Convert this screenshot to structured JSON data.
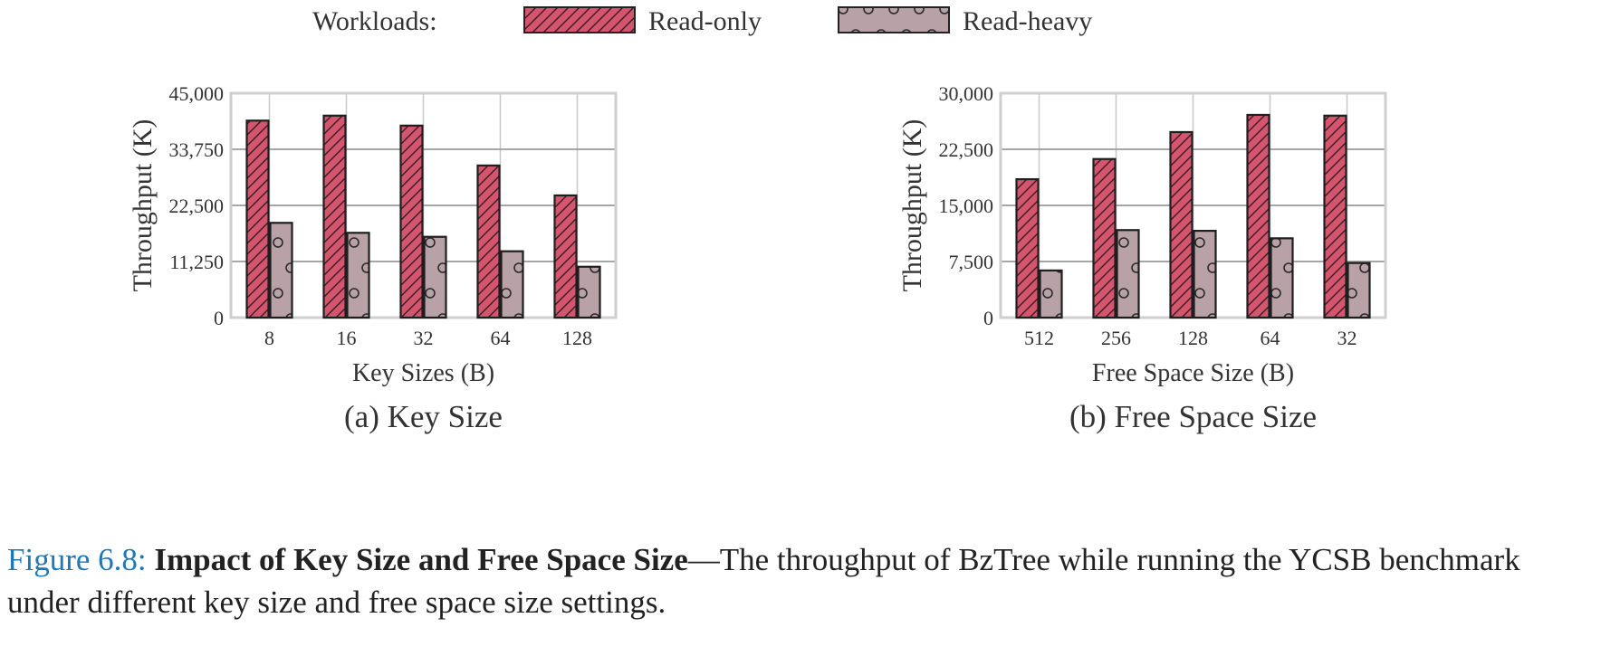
{
  "legend": {
    "title": "Workloads:",
    "entries": [
      "Read-only",
      "Read-heavy"
    ]
  },
  "colors": {
    "read_only": "#d4566e",
    "read_heavy": "#b8a2a8",
    "grid": "#c8c8c8",
    "axis": "#cfcfcf",
    "caption_label": "#1f77b4"
  },
  "chart_data": [
    {
      "id": "a",
      "type": "bar",
      "subtitle": "(a) Key Size",
      "xlabel": "Key Sizes (B)",
      "ylabel": "Throughput (K)",
      "categories": [
        "8",
        "16",
        "32",
        "64",
        "128"
      ],
      "ylim": [
        0,
        45000
      ],
      "yticks": [
        0,
        11250,
        22500,
        33750,
        45000
      ],
      "ytick_labels": [
        "0",
        "11,250",
        "22,500",
        "33,750",
        "45,000"
      ],
      "grid": true,
      "series": [
        {
          "name": "Read-only",
          "pattern": "hatch",
          "values": [
            39500,
            40500,
            38500,
            30500,
            24500
          ]
        },
        {
          "name": "Read-heavy",
          "pattern": "circles",
          "values": [
            19000,
            17000,
            16200,
            13300,
            10200
          ]
        }
      ]
    },
    {
      "id": "b",
      "type": "bar",
      "subtitle": "(b) Free Space Size",
      "xlabel": "Free Space Size (B)",
      "ylabel": "Throughput (K)",
      "categories": [
        "512",
        "256",
        "128",
        "64",
        "32"
      ],
      "ylim": [
        0,
        30000
      ],
      "yticks": [
        0,
        7500,
        15000,
        22500,
        30000
      ],
      "ytick_labels": [
        "0",
        "7,500",
        "15,000",
        "22,500",
        "30,000"
      ],
      "grid": true,
      "series": [
        {
          "name": "Read-only",
          "pattern": "hatch",
          "values": [
            18500,
            21200,
            24800,
            27100,
            27000
          ]
        },
        {
          "name": "Read-heavy",
          "pattern": "circles",
          "values": [
            6300,
            11700,
            11600,
            10600,
            7300
          ]
        }
      ]
    }
  ],
  "caption": {
    "label": "Figure 6.8:",
    "title": "Impact of Key Size and Free Space Size",
    "text": "—The throughput of BzTree while running the YCSB benchmark under different key size and free space size settings."
  }
}
